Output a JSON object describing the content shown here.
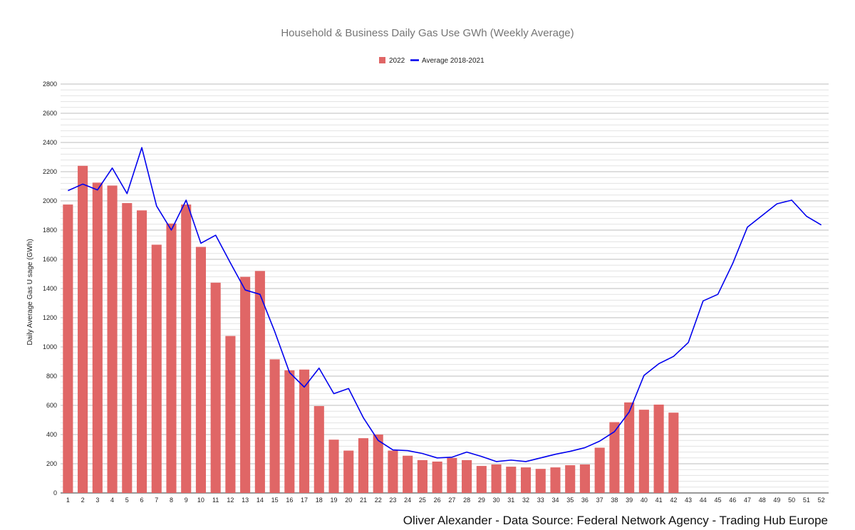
{
  "chart_data": {
    "type": "bar",
    "title": "Household & Business Daily Gas Use GWh (Weekly Average)",
    "xlabel": "",
    "ylabel": "Daily Average Gas U sage (GWh)",
    "ylim": [
      0,
      2800
    ],
    "yticks": [
      0,
      200,
      400,
      600,
      800,
      1000,
      1200,
      1400,
      1600,
      1800,
      2000,
      2200,
      2400,
      2600,
      2800
    ],
    "grid": true,
    "legend_position": "top",
    "categories": [
      "1",
      "2",
      "3",
      "4",
      "5",
      "6",
      "7",
      "8",
      "9",
      "10",
      "11",
      "12",
      "13",
      "14",
      "15",
      "16",
      "17",
      "18",
      "19",
      "20",
      "21",
      "22",
      "23",
      "24",
      "25",
      "26",
      "27",
      "28",
      "29",
      "30",
      "31",
      "32",
      "33",
      "34",
      "35",
      "36",
      "37",
      "38",
      "39",
      "40",
      "41",
      "42",
      "43",
      "44",
      "45",
      "46",
      "47",
      "48",
      "49",
      "50",
      "51",
      "52"
    ],
    "series": [
      {
        "name": "2022",
        "kind": "bar",
        "color": "#e06666",
        "values": [
          1975,
          2240,
          2125,
          2105,
          1985,
          1935,
          1700,
          1845,
          1975,
          1685,
          1440,
          1075,
          1480,
          1520,
          915,
          840,
          845,
          595,
          365,
          290,
          375,
          400,
          290,
          255,
          225,
          215,
          240,
          225,
          185,
          195,
          180,
          175,
          165,
          175,
          190,
          195,
          310,
          485,
          620,
          570,
          605,
          550,
          null,
          null,
          null,
          null,
          null,
          null,
          null,
          null,
          null,
          null
        ]
      },
      {
        "name": "Average 2018-2021",
        "kind": "line",
        "color": "#0000ee",
        "values": [
          2070,
          2115,
          2075,
          2225,
          2050,
          2365,
          1965,
          1800,
          2005,
          1710,
          1765,
          1575,
          1390,
          1360,
          1105,
          825,
          725,
          855,
          680,
          715,
          515,
          360,
          295,
          290,
          270,
          240,
          245,
          280,
          250,
          215,
          225,
          215,
          240,
          265,
          285,
          310,
          355,
          420,
          555,
          805,
          885,
          935,
          1030,
          1315,
          1360,
          1570,
          1820,
          1900,
          1980,
          2005,
          1895,
          1835
        ]
      }
    ]
  },
  "credit": "Oliver Alexander - Data Source: Federal Network Agency - Trading Hub Europe"
}
